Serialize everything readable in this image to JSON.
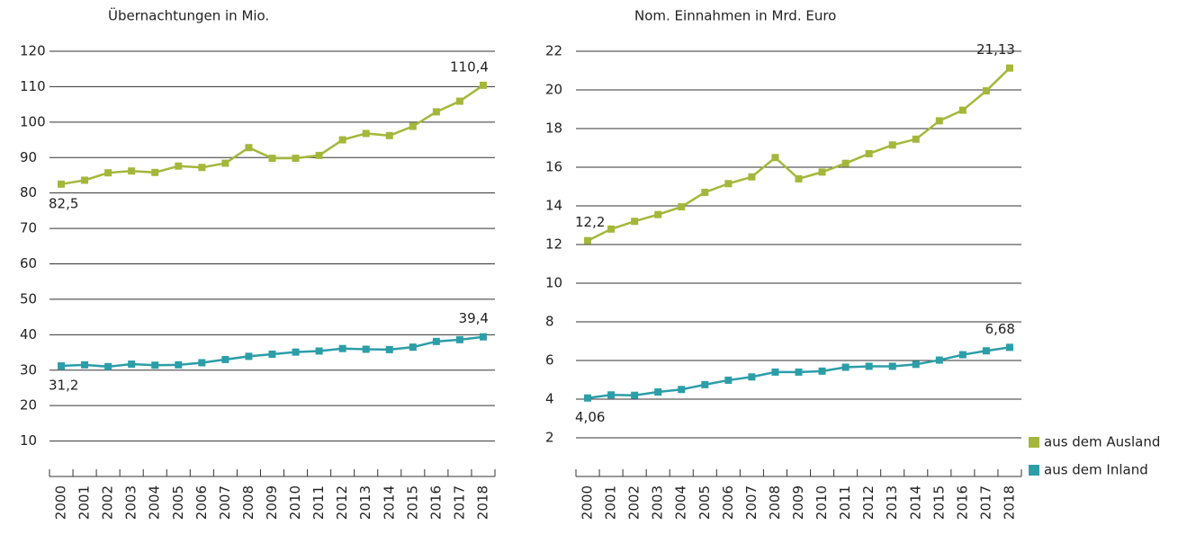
{
  "chart_data": [
    {
      "type": "line",
      "title": "Übernachtungen in Mio.",
      "categories": [
        "2000",
        "2001",
        "2002",
        "2003",
        "2004",
        "2005",
        "2006",
        "2007",
        "2008",
        "2009",
        "2010",
        "2011",
        "2012",
        "2013",
        "2014",
        "2015",
        "2016",
        "2017",
        "2018"
      ],
      "series": [
        {
          "name": "aus dem Ausland",
          "color": "#a5b73a",
          "values": [
            82.5,
            83.6,
            85.7,
            86.2,
            85.8,
            87.6,
            87.2,
            88.4,
            92.8,
            89.8,
            89.8,
            90.6,
            95.0,
            96.8,
            96.2,
            98.8,
            102.9,
            105.9,
            110.4
          ],
          "value_labels": [
            "82,5",
            null,
            null,
            null,
            null,
            null,
            null,
            null,
            null,
            null,
            null,
            null,
            null,
            null,
            null,
            null,
            null,
            null,
            "110,4"
          ]
        },
        {
          "name": "aus dem Inland",
          "color": "#2b9ea8",
          "values": [
            31.2,
            31.5,
            31.0,
            31.7,
            31.4,
            31.5,
            32.1,
            33.0,
            33.9,
            34.5,
            35.1,
            35.4,
            36.1,
            35.9,
            35.8,
            36.5,
            38.1,
            38.6,
            39.4
          ],
          "value_labels": [
            "31,2",
            null,
            null,
            null,
            null,
            null,
            null,
            null,
            null,
            null,
            null,
            null,
            null,
            null,
            null,
            null,
            null,
            null,
            "39,4"
          ]
        }
      ],
      "ylim": [
        0,
        120
      ],
      "yticks": [
        10,
        20,
        30,
        40,
        50,
        60,
        70,
        80,
        90,
        100,
        110,
        120
      ],
      "grid": true
    },
    {
      "type": "line",
      "title": "Nom. Einnahmen in Mrd. Euro",
      "categories": [
        "2000",
        "2001",
        "2002",
        "2003",
        "2004",
        "2005",
        "2006",
        "2007",
        "2008",
        "2009",
        "2010",
        "2011",
        "2012",
        "2013",
        "2014",
        "2015",
        "2016",
        "2017",
        "2018"
      ],
      "series": [
        {
          "name": "aus dem Ausland",
          "color": "#a5b73a",
          "values": [
            12.2,
            12.8,
            13.2,
            13.55,
            13.95,
            14.7,
            15.15,
            15.5,
            16.5,
            15.4,
            15.75,
            16.2,
            16.7,
            17.15,
            17.45,
            18.4,
            18.95,
            19.95,
            21.13
          ],
          "value_labels": [
            "12,2",
            null,
            null,
            null,
            null,
            null,
            null,
            null,
            null,
            null,
            null,
            null,
            null,
            null,
            null,
            null,
            null,
            null,
            "21,13"
          ]
        },
        {
          "name": "aus dem Inland",
          "color": "#2b9ea8",
          "values": [
            4.06,
            4.22,
            4.2,
            4.37,
            4.5,
            4.75,
            4.98,
            5.15,
            5.4,
            5.4,
            5.45,
            5.65,
            5.7,
            5.7,
            5.8,
            6.02,
            6.3,
            6.5,
            6.68
          ],
          "value_labels": [
            "4,06",
            null,
            null,
            null,
            null,
            null,
            null,
            null,
            null,
            null,
            null,
            null,
            null,
            null,
            null,
            null,
            null,
            null,
            "6,68"
          ]
        }
      ],
      "ylim": [
        0,
        22
      ],
      "yticks": [
        2,
        4,
        6,
        8,
        10,
        12,
        14,
        16,
        18,
        20,
        22
      ],
      "grid": true,
      "legend": "bottom-right"
    }
  ]
}
